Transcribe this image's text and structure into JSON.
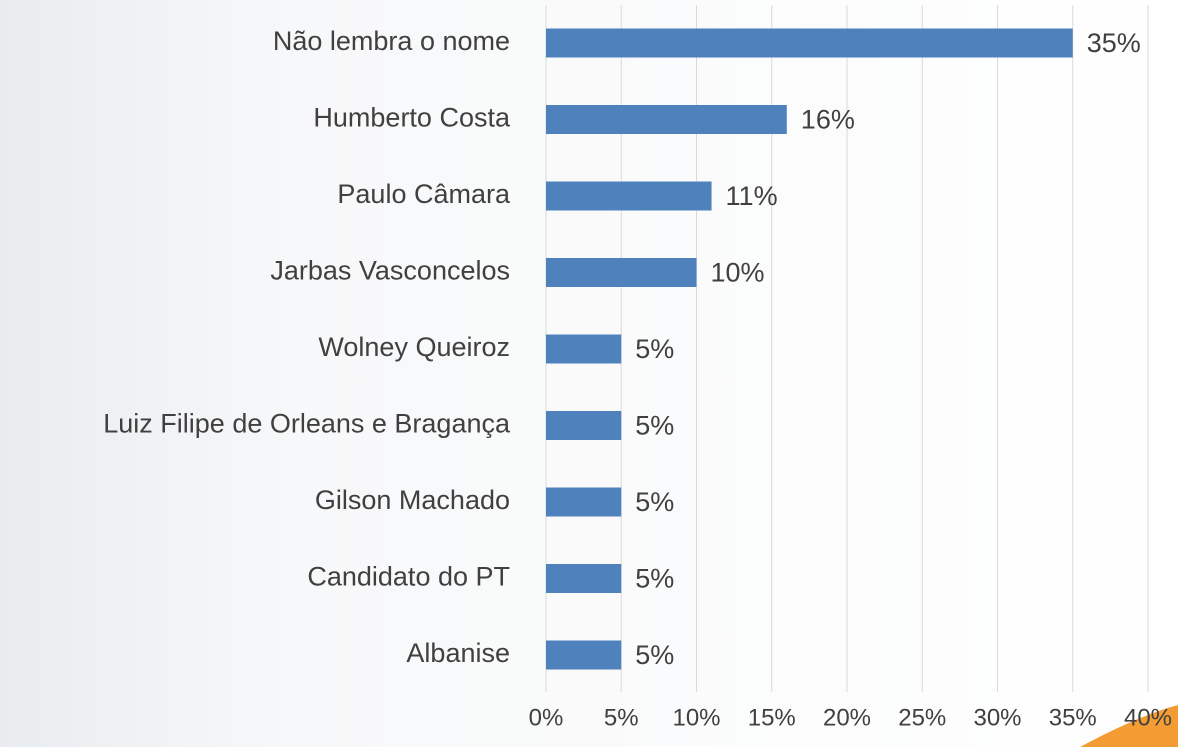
{
  "chart_data": {
    "type": "bar",
    "orientation": "horizontal",
    "categories": [
      "Não lembra o nome",
      "Humberto Costa",
      "Paulo Câmara",
      "Jarbas Vasconcelos",
      "Wolney Queiroz",
      "Luiz Filipe de Orleans e Bragança",
      "Gilson Machado",
      "Candidato do PT",
      "Albanise"
    ],
    "values": [
      35,
      16,
      11,
      10,
      5,
      5,
      5,
      5,
      5
    ],
    "value_labels": [
      "35%",
      "16%",
      "11%",
      "10%",
      "5%",
      "5%",
      "5%",
      "5%",
      "5%"
    ],
    "color": "#4f81bd",
    "xlim": [
      0,
      40
    ],
    "xticks": [
      {
        "value": 0,
        "label": "0%"
      },
      {
        "value": 5,
        "label": "5%"
      },
      {
        "value": 10,
        "label": "10%"
      },
      {
        "value": 15,
        "label": "15%"
      },
      {
        "value": 20,
        "label": "20%"
      },
      {
        "value": 25,
        "label": "25%"
      },
      {
        "value": 30,
        "label": "30%"
      },
      {
        "value": 35,
        "label": "35%"
      },
      {
        "value": 40,
        "label": "40%"
      }
    ],
    "grid": true
  }
}
